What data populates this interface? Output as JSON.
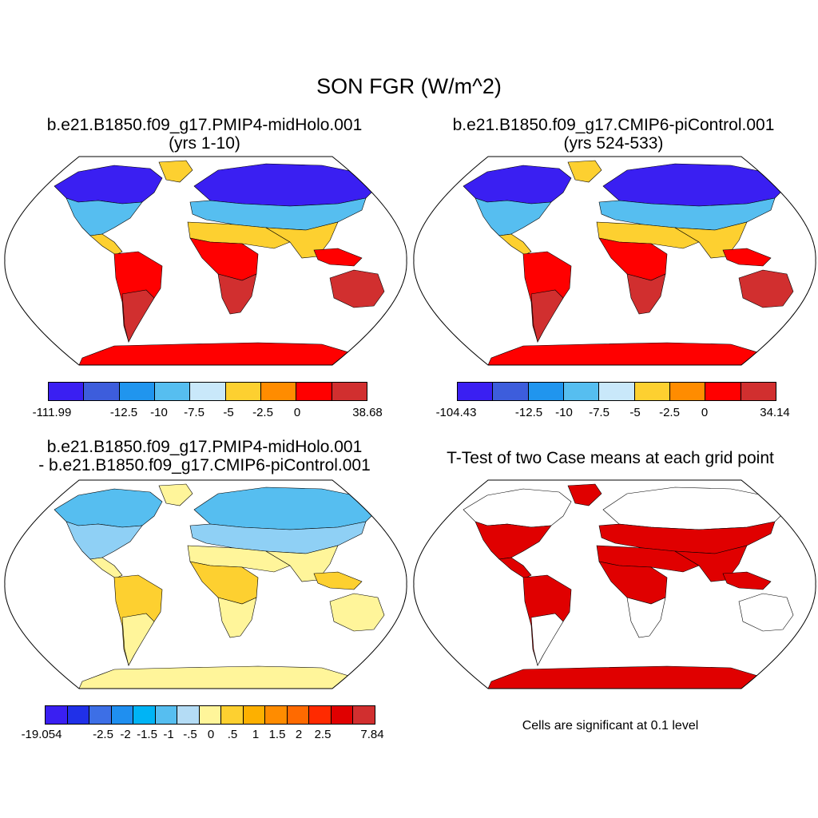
{
  "title": "SON FGR (W/m^2)",
  "panels": [
    {
      "id": "midholo",
      "title_line1": "b.e21.B1850.f09_g17.PMIP4-midHolo.001",
      "title_line2": "(yrs 1-10)",
      "land_colors": {
        "high": "#3a1ff2",
        "midlat": "#56bef0",
        "trop": "#fdd030",
        "tropwet": "#ff0000",
        "south": "#d12f2f",
        "antarctica": "#ff0000",
        "arctic": "#3d5ddc"
      },
      "colorbar": {
        "colors": [
          "#3a1ff2",
          "#3d5ddc",
          "#2095ee",
          "#56bef0",
          "#c9e8fa",
          "#fdd030",
          "#ff8c00",
          "#ff0000",
          "#d12f2f"
        ],
        "labels": [
          "-111.99",
          "-12.5",
          "-10",
          "-7.5",
          "-5",
          "-2.5",
          "0",
          "38.68"
        ]
      }
    },
    {
      "id": "picontrol",
      "title_line1": "b.e21.B1850.f09_g17.CMIP6-piControl.001",
      "title_line2": "(yrs 524-533)",
      "land_colors": {
        "high": "#3a1ff2",
        "midlat": "#56bef0",
        "trop": "#fdd030",
        "tropwet": "#ff0000",
        "south": "#d12f2f",
        "antarctica": "#ff0000",
        "arctic": "#3d5ddc"
      },
      "colorbar": {
        "colors": [
          "#3a1ff2",
          "#3d5ddc",
          "#2095ee",
          "#56bef0",
          "#c9e8fa",
          "#fdd030",
          "#ff8c00",
          "#ff0000",
          "#d12f2f"
        ],
        "labels": [
          "-104.43",
          "-12.5",
          "-10",
          "-7.5",
          "-5",
          "-2.5",
          "0",
          "34.14"
        ]
      }
    },
    {
      "id": "difference",
      "title_line1": "b.e21.B1850.f09_g17.PMIP4-midHolo.001",
      "title_line2": "- b.e21.B1850.f09_g17.CMIP6-piControl.001",
      "land_colors": {
        "high": "#56bef0",
        "midlat": "#8fd0f5",
        "trop": "#fff59a",
        "tropwet": "#fdd030",
        "south": "#fff59a",
        "antarctica": "#fff59a",
        "arctic": "#4a8ff0"
      },
      "colorbar": {
        "colors": [
          "#3a1ff2",
          "#2030e8",
          "#3d6fe6",
          "#1f8ff0",
          "#00b4f5",
          "#56bef0",
          "#b4dcf5",
          "#fff59a",
          "#fdd030",
          "#fdb000",
          "#ff8c00",
          "#ff6a00",
          "#ff2a00",
          "#e00000",
          "#d12f2f"
        ],
        "labels": [
          "-19.054",
          "-2.5",
          "-2",
          "-1.5",
          "-1",
          "-.5",
          "0",
          ".5",
          "1",
          "1.5",
          "2",
          "2.5",
          "7.84"
        ]
      }
    },
    {
      "id": "ttest",
      "title_line1": "T-Test of two Case means at each grid point",
      "title_line2": "",
      "land_colors": {
        "high": "#ffffff",
        "midlat": "#e00000",
        "trop": "#e00000",
        "tropwet": "#e00000",
        "south": "#ffffff",
        "antarctica": "#e00000",
        "arctic": "#ffffff"
      },
      "note": "Cells are significant at 0.1 level"
    }
  ]
}
